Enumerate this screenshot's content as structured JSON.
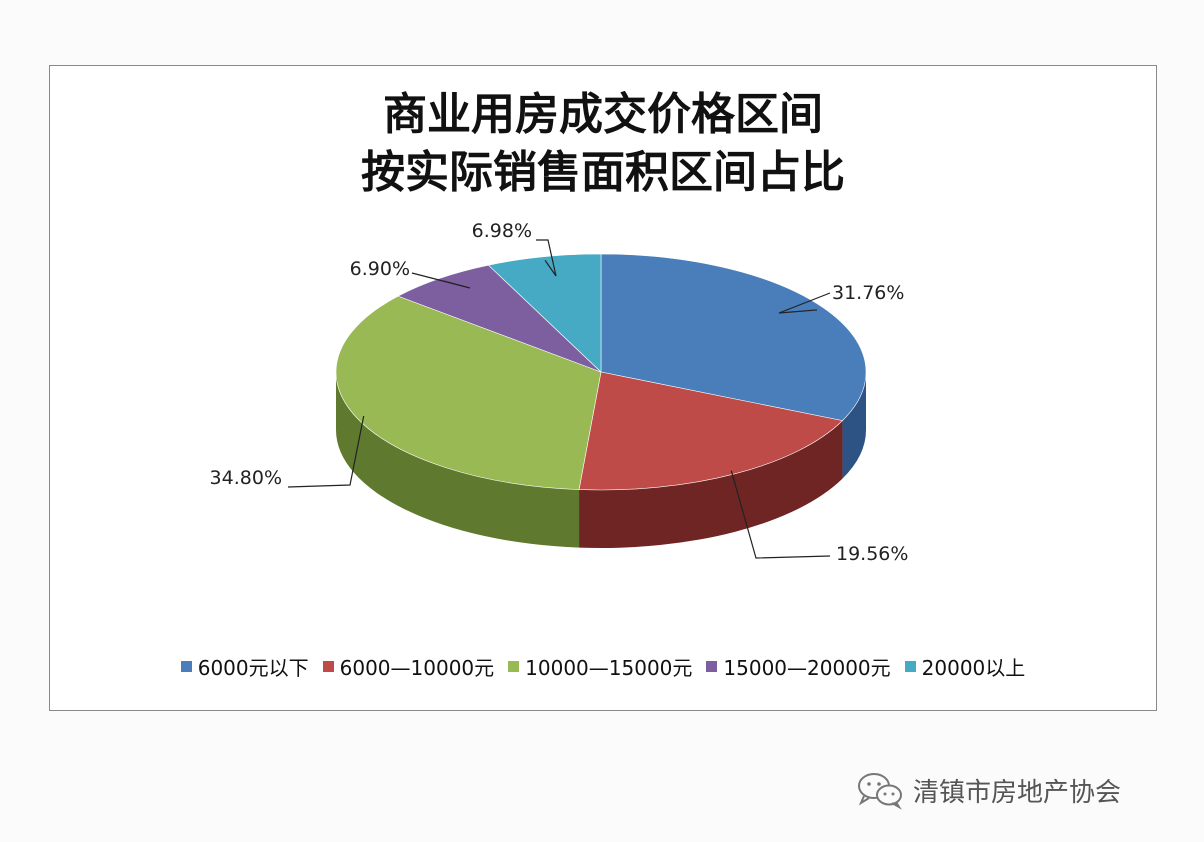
{
  "chart_data": {
    "type": "pie",
    "title_lines": [
      "商业用房成交价格区间",
      "按实际销售面积区间占比"
    ],
    "slices": [
      {
        "label": "6000元以下",
        "value": 31.76,
        "display": "31.76%",
        "color": "#4a7ebb",
        "side_color": "#2d5385"
      },
      {
        "label": "6000—10000元",
        "value": 19.56,
        "display": "19.56%",
        "color": "#be4b48",
        "side_color": "#6e2523"
      },
      {
        "label": "10000—15000元",
        "value": 34.8,
        "display": "34.80%",
        "color": "#98b954",
        "side_color": "#5f7a2f"
      },
      {
        "label": "15000—20000元",
        "value": 6.9,
        "display": "6.90%",
        "color": "#7d5fa0",
        "side_color": "#4e3a66"
      },
      {
        "label": "20000以上",
        "value": 6.98,
        "display": "6.98%",
        "color": "#46aac5",
        "side_color": "#2a6e81"
      }
    ],
    "legend_position": "bottom",
    "view": "3d"
  },
  "watermark": {
    "text": "清镇市房地产协会",
    "icon": "wechat-icon"
  }
}
